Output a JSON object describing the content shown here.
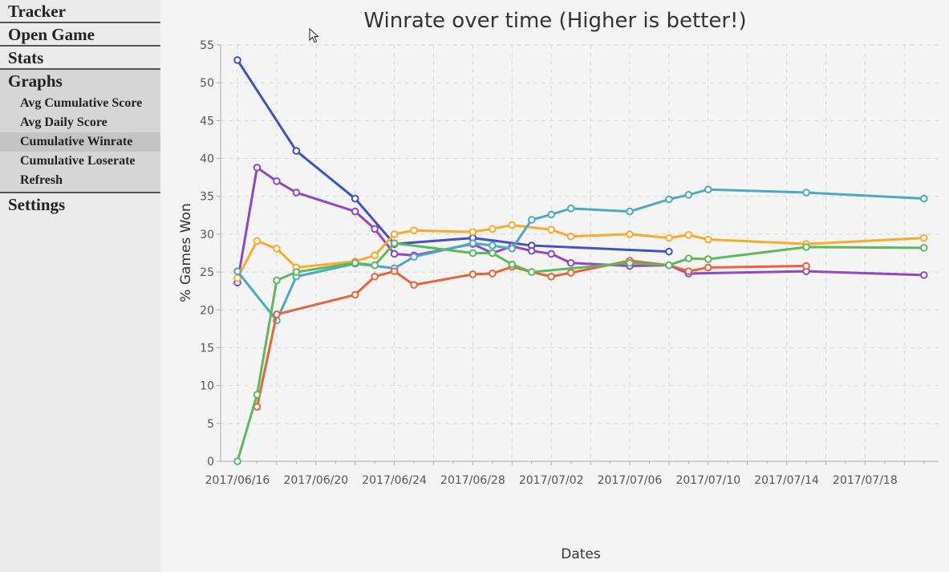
{
  "sidebar": {
    "tracker_label": "Tracker",
    "open_game_label": "Open Game",
    "stats_label": "Stats",
    "graphs_label": "Graphs",
    "graphs_items": [
      {
        "label": "Avg Cumulative Score"
      },
      {
        "label": "Avg Daily Score"
      },
      {
        "label": "Cumulative Winrate",
        "selected": true
      },
      {
        "label": "Cumulative Loserate"
      },
      {
        "label": "Refresh"
      }
    ],
    "settings_label": "Settings"
  },
  "chart_data": {
    "type": "line",
    "title": "Winrate over time (Higher is better!)",
    "xlabel": "Dates",
    "ylabel": "% Games Won",
    "ylim": [
      0,
      55
    ],
    "yticks": [
      0,
      5,
      10,
      15,
      20,
      25,
      30,
      35,
      40,
      45,
      50,
      55
    ],
    "xlim": [
      "2017/06/16",
      "2017/07/22"
    ],
    "xtick_labels": [
      "2017/06/16",
      "2017/06/20",
      "2017/06/24",
      "2017/06/28",
      "2017/07/02",
      "2017/07/06",
      "2017/07/10",
      "2017/07/14",
      "2017/07/18"
    ],
    "grid": true,
    "series": [
      {
        "color": "#3f51c4",
        "points": [
          [
            "2017/06/16",
            53
          ],
          [
            "2017/06/19",
            41
          ],
          [
            "2017/06/22",
            34.7
          ],
          [
            "2017/06/24",
            28.7
          ],
          [
            "2017/06/28",
            29.5
          ],
          [
            "2017/07/01",
            28.5
          ],
          [
            "2017/07/08",
            27.7
          ]
        ]
      },
      {
        "color": "#9146c6",
        "points": [
          [
            "2017/06/16",
            23.6
          ],
          [
            "2017/06/17",
            38.8
          ],
          [
            "2017/06/18",
            37
          ],
          [
            "2017/06/19",
            35.5
          ],
          [
            "2017/06/22",
            33
          ],
          [
            "2017/06/23",
            30.7
          ],
          [
            "2017/06/24",
            27.4
          ],
          [
            "2017/06/25",
            27.2
          ],
          [
            "2017/06/28",
            28.7
          ],
          [
            "2017/06/29",
            27.5
          ],
          [
            "2017/06/30",
            28.4
          ],
          [
            "2017/07/01",
            27.8
          ],
          [
            "2017/07/02",
            27.4
          ],
          [
            "2017/07/03",
            26.2
          ],
          [
            "2017/07/06",
            25.8
          ],
          [
            "2017/07/08",
            25.9
          ],
          [
            "2017/07/09",
            24.8
          ],
          [
            "2017/07/15",
            25.1
          ],
          [
            "2017/07/21",
            24.6
          ]
        ]
      },
      {
        "color": "#f9aa2b",
        "points": [
          [
            "2017/06/16",
            24.2
          ],
          [
            "2017/06/17",
            29.1
          ],
          [
            "2017/06/18",
            28.1
          ],
          [
            "2017/06/19",
            25.6
          ],
          [
            "2017/06/22",
            26.4
          ],
          [
            "2017/06/23",
            27.2
          ],
          [
            "2017/06/24",
            30
          ],
          [
            "2017/06/25",
            30.5
          ],
          [
            "2017/06/28",
            30.3
          ],
          [
            "2017/06/29",
            30.7
          ],
          [
            "2017/06/30",
            31.2
          ],
          [
            "2017/07/02",
            30.6
          ],
          [
            "2017/07/03",
            29.7
          ],
          [
            "2017/07/06",
            30
          ],
          [
            "2017/07/08",
            29.5
          ],
          [
            "2017/07/09",
            29.9
          ],
          [
            "2017/07/10",
            29.3
          ],
          [
            "2017/07/15",
            28.7
          ],
          [
            "2017/07/21",
            29.5
          ]
        ]
      },
      {
        "color": "#4ba9c8",
        "points": [
          [
            "2017/06/16",
            25.1
          ],
          [
            "2017/06/18",
            18.6
          ],
          [
            "2017/06/19",
            24.4
          ],
          [
            "2017/06/22",
            26.1
          ],
          [
            "2017/06/24",
            25.5
          ],
          [
            "2017/06/25",
            27
          ],
          [
            "2017/06/28",
            28.8
          ],
          [
            "2017/06/29",
            28.5
          ],
          [
            "2017/06/30",
            28.1
          ],
          [
            "2017/07/01",
            31.9
          ],
          [
            "2017/07/02",
            32.6
          ],
          [
            "2017/07/03",
            33.4
          ],
          [
            "2017/07/06",
            33
          ],
          [
            "2017/07/08",
            34.6
          ],
          [
            "2017/07/09",
            35.2
          ],
          [
            "2017/07/10",
            35.9
          ],
          [
            "2017/07/15",
            35.5
          ],
          [
            "2017/07/21",
            34.7
          ]
        ]
      },
      {
        "color": "#e8633a",
        "points": [
          [
            "2017/06/17",
            7.2
          ],
          [
            "2017/06/18",
            19.4
          ],
          [
            "2017/06/22",
            22
          ],
          [
            "2017/06/23",
            24.4
          ],
          [
            "2017/06/24",
            25.1
          ],
          [
            "2017/06/25",
            23.3
          ],
          [
            "2017/06/28",
            24.7
          ],
          [
            "2017/06/29",
            24.8
          ],
          [
            "2017/06/30",
            25.7
          ],
          [
            "2017/07/01",
            25
          ],
          [
            "2017/07/02",
            24.4
          ],
          [
            "2017/07/03",
            24.9
          ],
          [
            "2017/07/06",
            26.5
          ],
          [
            "2017/07/08",
            25.9
          ],
          [
            "2017/07/09",
            25.1
          ],
          [
            "2017/07/10",
            25.6
          ],
          [
            "2017/07/15",
            25.8
          ]
        ]
      },
      {
        "color": "#5cb85c",
        "points": [
          [
            "2017/06/16",
            0
          ],
          [
            "2017/06/17",
            8.8
          ],
          [
            "2017/06/18",
            23.9
          ],
          [
            "2017/06/19",
            25
          ],
          [
            "2017/06/22",
            26.2
          ],
          [
            "2017/06/23",
            25.9
          ],
          [
            "2017/06/24",
            28.8
          ],
          [
            "2017/06/28",
            27.5
          ],
          [
            "2017/06/29",
            27.5
          ],
          [
            "2017/06/30",
            26
          ],
          [
            "2017/07/01",
            25
          ],
          [
            "2017/07/06",
            26.2
          ],
          [
            "2017/07/08",
            25.9
          ],
          [
            "2017/07/09",
            26.8
          ],
          [
            "2017/07/10",
            26.7
          ],
          [
            "2017/07/15",
            28.3
          ],
          [
            "2017/07/21",
            28.2
          ]
        ]
      }
    ]
  }
}
